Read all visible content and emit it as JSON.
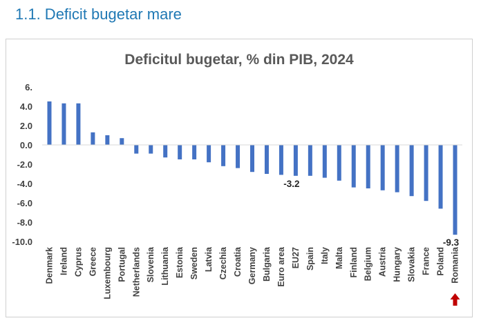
{
  "heading": "1.1. Deficit bugetar mare",
  "chart_data": {
    "type": "bar",
    "title": "Deficitul bugetar, % din PIB, 2024",
    "xlabel": "",
    "ylabel": "",
    "ylim": [
      -10,
      6
    ],
    "yticks": [
      6,
      4,
      2,
      0,
      -2,
      -4,
      -6,
      -8,
      -10
    ],
    "ytick_labels": [
      "6.",
      "4.0",
      "2.0",
      "0.0",
      "-2.0",
      "-4.0",
      "-6.0",
      "-8.0",
      "-10.0"
    ],
    "grid": false,
    "bar_color": "#4472c4",
    "categories": [
      "Denmark",
      "Ireland",
      "Cyprus",
      "Greece",
      "Luxembourg",
      "Portugal",
      "Netherlands",
      "Slovenia",
      "Lithuania",
      "Estonia",
      "Sweden",
      "Latvia",
      "Czechia",
      "Croatia",
      "Germany",
      "Bulgaria",
      "Euro area",
      "EU27",
      "Spain",
      "Italy",
      "Malta",
      "Finland",
      "Belgium",
      "Austria",
      "Hungary",
      "Slovakia",
      "France",
      "Poland",
      "Romania"
    ],
    "values": [
      4.5,
      4.3,
      4.3,
      1.3,
      1.0,
      0.7,
      -0.9,
      -0.9,
      -1.3,
      -1.5,
      -1.5,
      -1.8,
      -2.2,
      -2.4,
      -2.8,
      -3.0,
      -3.1,
      -3.2,
      -3.2,
      -3.4,
      -3.7,
      -4.4,
      -4.5,
      -4.7,
      -4.9,
      -5.3,
      -5.8,
      -6.6,
      -9.3
    ],
    "annotations": [
      {
        "category": "EU27",
        "text": "-3.2"
      },
      {
        "category": "Romania",
        "text": "-9.3"
      }
    ],
    "highlight": {
      "category": "Romania",
      "marker": "up-arrow",
      "color": "#c00000"
    }
  }
}
